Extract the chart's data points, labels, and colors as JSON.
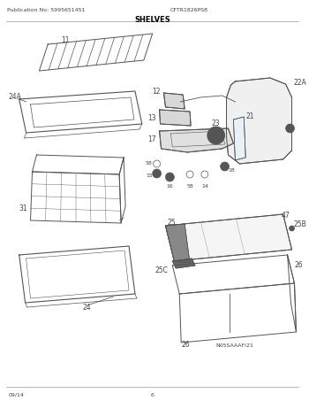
{
  "title": "SHELVES",
  "pub_no": "Publication No: 5995651451",
  "model": "CFTR1826PS8",
  "page": "6",
  "date": "09/14",
  "watermark": "N05SAAAFI21",
  "bg_color": "#ffffff",
  "line_color": "#555555",
  "text_color": "#444444"
}
